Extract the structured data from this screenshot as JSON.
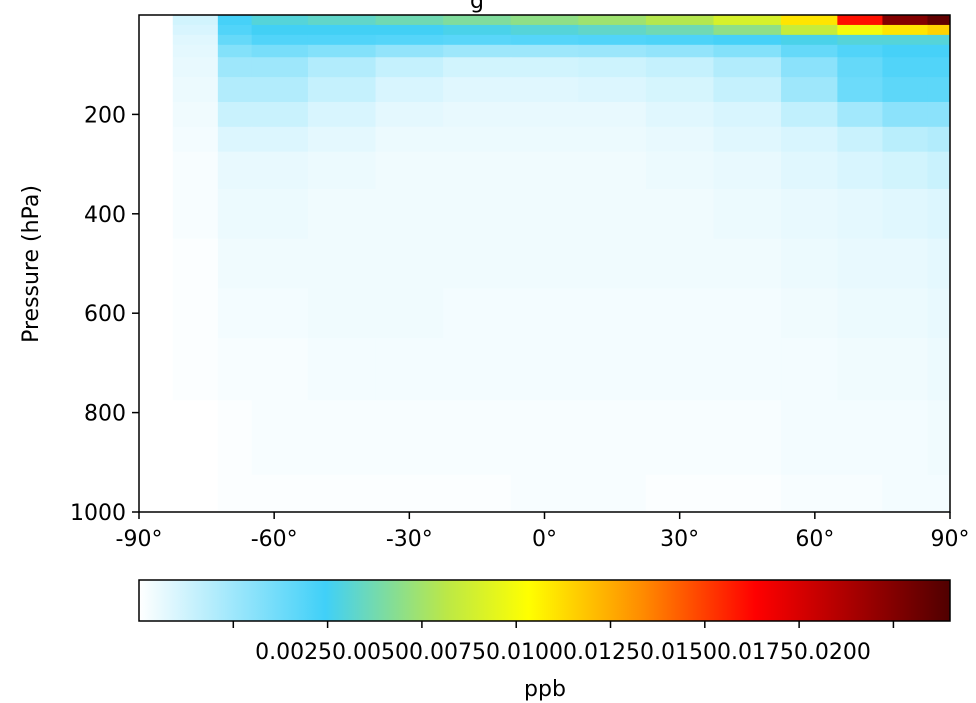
{
  "chart_data": {
    "type": "heatmap",
    "title": "g",
    "ylabel": "Pressure (hPa)",
    "xlabel": "",
    "x_ticks": [
      -90,
      -60,
      -30,
      0,
      30,
      60,
      90
    ],
    "x_tick_labels": [
      "-90°",
      "-60°",
      "-30°",
      "0°",
      "30°",
      "60°",
      "90°"
    ],
    "y_ticks": [
      200,
      400,
      600,
      800,
      1000
    ],
    "y_tick_labels": [
      "200",
      "400",
      "600",
      "800",
      "1000"
    ],
    "xlim": [
      -90,
      90
    ],
    "ylim": [
      1000,
      0
    ],
    "y_axis_inverted": true,
    "colorbar": {
      "label": "ppb",
      "orientation": "horizontal",
      "colormap": "white-cyan-yellow-red-darkred",
      "range": [
        0.0,
        0.0215
      ],
      "ticks": [
        0.0025,
        0.005,
        0.0075,
        0.01,
        0.0125,
        0.015,
        0.0175,
        0.02
      ],
      "tick_labels_text": "0.00250.00500.00750.01000.01250.01500.01750.0200"
    },
    "latitudes": [
      -90,
      -75,
      -70,
      -60,
      -45,
      -30,
      -15,
      0,
      15,
      30,
      45,
      60,
      70,
      80,
      90
    ],
    "pressure_levels": [
      10,
      30,
      50,
      70,
      100,
      150,
      200,
      250,
      300,
      400,
      500,
      600,
      700,
      850,
      1000
    ],
    "values_ppb": [
      [
        0,
        0.0012,
        0.0048,
        0.0055,
        0.0058,
        0.0062,
        0.0066,
        0.007,
        0.0074,
        0.008,
        0.009,
        0.011,
        0.016,
        0.02,
        0.021
      ],
      [
        0,
        0.001,
        0.0045,
        0.005,
        0.005,
        0.005,
        0.0052,
        0.0055,
        0.0058,
        0.0062,
        0.007,
        0.0085,
        0.01,
        0.011,
        0.0115
      ],
      [
        0,
        0.0008,
        0.004,
        0.0045,
        0.0045,
        0.0044,
        0.0043,
        0.0044,
        0.0045,
        0.0046,
        0.0048,
        0.0052,
        0.0055,
        0.0055,
        0.0055
      ],
      [
        0,
        0.0007,
        0.0032,
        0.0035,
        0.0032,
        0.0028,
        0.0025,
        0.0025,
        0.0026,
        0.0028,
        0.0032,
        0.004,
        0.0045,
        0.0048,
        0.0048
      ],
      [
        0,
        0.0006,
        0.0025,
        0.0025,
        0.002,
        0.0015,
        0.0012,
        0.0012,
        0.0013,
        0.0015,
        0.002,
        0.003,
        0.004,
        0.0045,
        0.0045
      ],
      [
        0,
        0.0005,
        0.002,
        0.002,
        0.0015,
        0.001,
        0.0008,
        0.0008,
        0.0009,
        0.0011,
        0.0015,
        0.0025,
        0.0038,
        0.0042,
        0.0042
      ],
      [
        0,
        0.0004,
        0.0014,
        0.0014,
        0.001,
        0.0007,
        0.0006,
        0.0006,
        0.0006,
        0.0008,
        0.001,
        0.0016,
        0.0024,
        0.003,
        0.003
      ],
      [
        0,
        0.0003,
        0.0009,
        0.0009,
        0.0007,
        0.0005,
        0.0005,
        0.0005,
        0.0005,
        0.0006,
        0.0008,
        0.001,
        0.0014,
        0.0018,
        0.002
      ],
      [
        0,
        0.0002,
        0.0006,
        0.0006,
        0.0005,
        0.0004,
        0.0004,
        0.0004,
        0.0004,
        0.0005,
        0.0006,
        0.0008,
        0.001,
        0.0012,
        0.0014
      ],
      [
        0,
        0.0002,
        0.0005,
        0.0005,
        0.0004,
        0.0004,
        0.0004,
        0.0004,
        0.0004,
        0.0004,
        0.0005,
        0.0006,
        0.0007,
        0.0008,
        0.0009
      ],
      [
        0,
        0.0001,
        0.0004,
        0.0004,
        0.0004,
        0.0004,
        0.0004,
        0.0004,
        0.0004,
        0.0004,
        0.0004,
        0.0005,
        0.0006,
        0.0006,
        0.0007
      ],
      [
        0,
        0.0001,
        0.0003,
        0.0003,
        0.0004,
        0.0004,
        0.0003,
        0.0003,
        0.0003,
        0.0003,
        0.0003,
        0.0004,
        0.0005,
        0.0005,
        0.0006
      ],
      [
        0,
        0.0001,
        0.0002,
        0.0002,
        0.0003,
        0.0003,
        0.0003,
        0.0003,
        0.0003,
        0.0003,
        0.0003,
        0.0003,
        0.0004,
        0.0004,
        0.0005
      ],
      [
        0,
        0.0,
        0.0001,
        0.0002,
        0.0002,
        0.0002,
        0.0002,
        0.0002,
        0.0002,
        0.0002,
        0.0002,
        0.0003,
        0.0003,
        0.0003,
        0.0004
      ],
      [
        0,
        0.0,
        0.0001,
        0.0001,
        0.0001,
        0.0001,
        0.0001,
        0.0002,
        0.0002,
        0.0001,
        0.0001,
        0.0002,
        0.0002,
        0.0003,
        0.0003
      ]
    ]
  }
}
